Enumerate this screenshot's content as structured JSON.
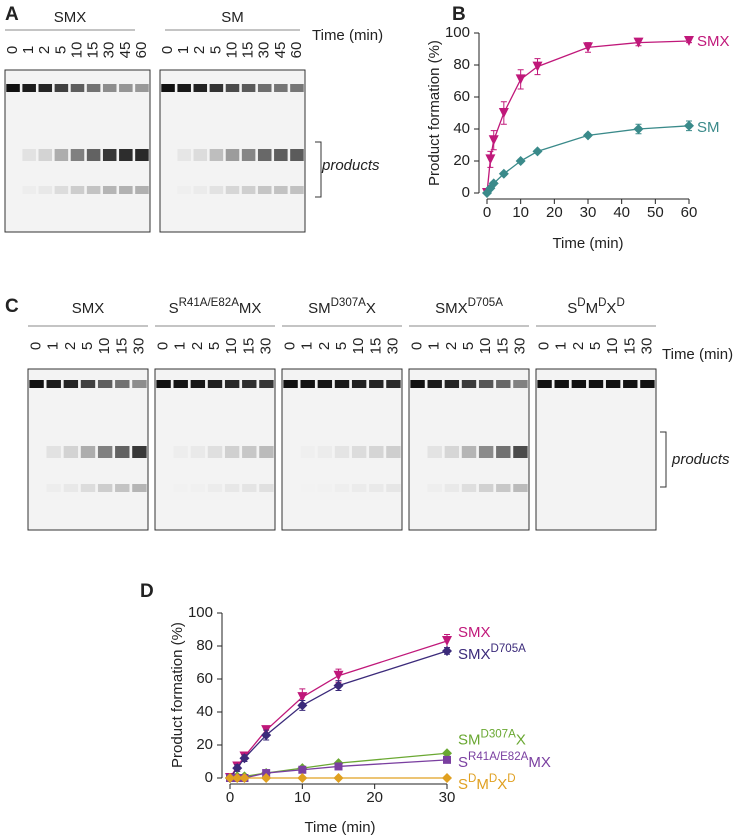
{
  "gels": {
    "A": {
      "panel": "A",
      "lanes": [
        0,
        1,
        2,
        5,
        10,
        15,
        30,
        45,
        60
      ],
      "time_label": "Time (min)",
      "products_label": "products",
      "gels": [
        {
          "label": [
            "SMX"
          ]
        },
        {
          "label": [
            "SM"
          ]
        }
      ]
    },
    "C": {
      "panel": "C",
      "lanes": [
        0,
        1,
        2,
        5,
        10,
        15,
        30
      ],
      "time_label": "Time (min)",
      "products_label": "products",
      "gels": [
        {
          "label": [
            "SMX"
          ]
        },
        {
          "label": [
            "S",
            "R41A/E82A",
            "MX"
          ]
        },
        {
          "label": [
            "SM",
            "D307A",
            "X"
          ]
        },
        {
          "label": [
            "SMX",
            "D705A"
          ]
        },
        {
          "label": [
            "S",
            "D",
            "M",
            "D",
            "X",
            "D"
          ]
        }
      ]
    }
  },
  "chart_data": [
    {
      "type": "line",
      "panel": "B",
      "xlabel": "Time (min)",
      "ylabel": "Product formation (%)",
      "x": [
        0,
        1,
        2,
        5,
        10,
        15,
        30,
        45,
        60
      ],
      "xlim": [
        0,
        60
      ],
      "xticks": [
        0,
        10,
        20,
        30,
        40,
        50,
        60
      ],
      "ylim": [
        0,
        100
      ],
      "yticks": [
        0,
        20,
        40,
        60,
        80,
        100
      ],
      "series": [
        {
          "name": [
            "SMX"
          ],
          "color": "#c0187a",
          "marker": "triangle-down",
          "values": [
            0,
            21,
            33,
            50,
            71,
            79,
            91,
            94,
            95
          ],
          "errors": [
            0,
            5,
            6,
            7,
            6,
            5,
            3,
            2,
            1
          ]
        },
        {
          "name": [
            "SM"
          ],
          "color": "#3a8a8a",
          "marker": "diamond",
          "values": [
            0,
            3,
            6,
            12,
            20,
            26,
            36,
            40,
            42
          ],
          "errors": [
            0,
            1,
            1,
            1,
            1,
            1,
            1,
            3,
            3
          ]
        }
      ]
    },
    {
      "type": "line",
      "panel": "D",
      "xlabel": "Time (min)",
      "ylabel": "Product formation (%)",
      "x": [
        0,
        1,
        2,
        5,
        10,
        15,
        30
      ],
      "xlim": [
        0,
        30
      ],
      "xticks": [
        0,
        10,
        20,
        30
      ],
      "ylim": [
        0,
        100
      ],
      "yticks": [
        0,
        20,
        40,
        60,
        80,
        100
      ],
      "series": [
        {
          "name": [
            "SMX"
          ],
          "color": "#c0187a",
          "marker": "triangle-down",
          "values": [
            0,
            7,
            13,
            29,
            49,
            62,
            83
          ],
          "errors": [
            0,
            2,
            2,
            2,
            5,
            4,
            4
          ]
        },
        {
          "name": [
            "SMX",
            "D705A"
          ],
          "color": "#3b2a7a",
          "marker": "diamond",
          "values": [
            0,
            6,
            12,
            26,
            44,
            56,
            77
          ],
          "errors": [
            0,
            2,
            2,
            3,
            3,
            3,
            2
          ]
        },
        {
          "name": [
            "SM",
            "D307A",
            "X"
          ],
          "color": "#6aa832",
          "marker": "diamond",
          "values": [
            0,
            1,
            1,
            3,
            6,
            9,
            15
          ]
        },
        {
          "name": [
            "S",
            "R41A/E82A",
            "MX"
          ],
          "color": "#7a3fa0",
          "marker": "square",
          "values": [
            0,
            0,
            0,
            3,
            5,
            7,
            11
          ]
        },
        {
          "name": [
            "S",
            "D",
            "M",
            "D",
            "X",
            "D"
          ],
          "color": "#e0a020",
          "marker": "diamond",
          "values": [
            0,
            0,
            0,
            0,
            0,
            0,
            0
          ]
        }
      ]
    }
  ]
}
